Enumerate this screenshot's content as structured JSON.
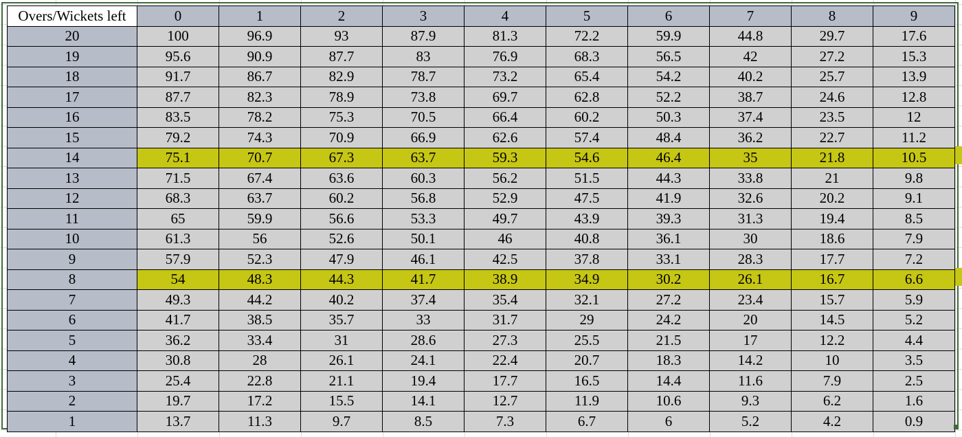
{
  "sheet": {
    "corner_label": "Overs/Wickets left",
    "wickets": [
      "0",
      "1",
      "2",
      "3",
      "4",
      "5",
      "6",
      "7",
      "8",
      "9"
    ],
    "highlight_color": "#c6c614",
    "highlighted_overs": [
      "14",
      "8"
    ],
    "rows": [
      {
        "overs": "20",
        "values": [
          "100",
          "96.9",
          "93",
          "87.9",
          "81.3",
          "72.2",
          "59.9",
          "44.8",
          "29.7",
          "17.6"
        ]
      },
      {
        "overs": "19",
        "values": [
          "95.6",
          "90.9",
          "87.7",
          "83",
          "76.9",
          "68.3",
          "56.5",
          "42",
          "27.2",
          "15.3"
        ]
      },
      {
        "overs": "18",
        "values": [
          "91.7",
          "86.7",
          "82.9",
          "78.7",
          "73.2",
          "65.4",
          "54.2",
          "40.2",
          "25.7",
          "13.9"
        ]
      },
      {
        "overs": "17",
        "values": [
          "87.7",
          "82.3",
          "78.9",
          "73.8",
          "69.7",
          "62.8",
          "52.2",
          "38.7",
          "24.6",
          "12.8"
        ]
      },
      {
        "overs": "16",
        "values": [
          "83.5",
          "78.2",
          "75.3",
          "70.5",
          "66.4",
          "60.2",
          "50.3",
          "37.4",
          "23.5",
          "12"
        ]
      },
      {
        "overs": "15",
        "values": [
          "79.2",
          "74.3",
          "70.9",
          "66.9",
          "62.6",
          "57.4",
          "48.4",
          "36.2",
          "22.7",
          "11.2"
        ]
      },
      {
        "overs": "14",
        "values": [
          "75.1",
          "70.7",
          "67.3",
          "63.7",
          "59.3",
          "54.6",
          "46.4",
          "35",
          "21.8",
          "10.5"
        ]
      },
      {
        "overs": "13",
        "values": [
          "71.5",
          "67.4",
          "63.6",
          "60.3",
          "56.2",
          "51.5",
          "44.3",
          "33.8",
          "21",
          "9.8"
        ]
      },
      {
        "overs": "12",
        "values": [
          "68.3",
          "63.7",
          "60.2",
          "56.8",
          "52.9",
          "47.5",
          "41.9",
          "32.6",
          "20.2",
          "9.1"
        ]
      },
      {
        "overs": "11",
        "values": [
          "65",
          "59.9",
          "56.6",
          "53.3",
          "49.7",
          "43.9",
          "39.3",
          "31.3",
          "19.4",
          "8.5"
        ]
      },
      {
        "overs": "10",
        "values": [
          "61.3",
          "56",
          "52.6",
          "50.1",
          "46",
          "40.8",
          "36.1",
          "30",
          "18.6",
          "7.9"
        ]
      },
      {
        "overs": "9",
        "values": [
          "57.9",
          "52.3",
          "47.9",
          "46.1",
          "42.5",
          "37.8",
          "33.1",
          "28.3",
          "17.7",
          "7.2"
        ]
      },
      {
        "overs": "8",
        "values": [
          "54",
          "48.3",
          "44.3",
          "41.7",
          "38.9",
          "34.9",
          "30.2",
          "26.1",
          "16.7",
          "6.6"
        ]
      },
      {
        "overs": "7",
        "values": [
          "49.3",
          "44.2",
          "40.2",
          "37.4",
          "35.4",
          "32.1",
          "27.2",
          "23.4",
          "15.7",
          "5.9"
        ]
      },
      {
        "overs": "6",
        "values": [
          "41.7",
          "38.5",
          "35.7",
          "33",
          "31.7",
          "29",
          "24.2",
          "20",
          "14.5",
          "5.2"
        ]
      },
      {
        "overs": "5",
        "values": [
          "36.2",
          "33.4",
          "31",
          "28.6",
          "27.3",
          "25.5",
          "21.5",
          "17",
          "12.2",
          "4.4"
        ]
      },
      {
        "overs": "4",
        "values": [
          "30.8",
          "28",
          "26.1",
          "24.1",
          "22.4",
          "20.7",
          "18.3",
          "14.2",
          "10",
          "3.5"
        ]
      },
      {
        "overs": "3",
        "values": [
          "25.4",
          "22.8",
          "21.1",
          "19.4",
          "17.7",
          "16.5",
          "14.4",
          "11.6",
          "7.9",
          "2.5"
        ]
      },
      {
        "overs": "2",
        "values": [
          "19.7",
          "17.2",
          "15.5",
          "14.1",
          "12.7",
          "11.9",
          "10.6",
          "9.3",
          "6.2",
          "1.6"
        ]
      },
      {
        "overs": "1",
        "values": [
          "13.7",
          "11.3",
          "9.7",
          "8.5",
          "7.3",
          "6.7",
          "6",
          "5.2",
          "4.2",
          "0.9"
        ]
      }
    ]
  }
}
